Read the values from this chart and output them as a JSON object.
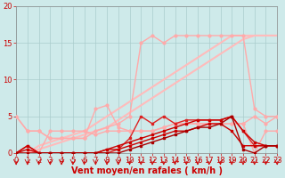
{
  "background_color": "#ceeaea",
  "grid_color": "#aacccc",
  "xlabel": "Vent moyen/en rafales ( km/h )",
  "xlabel_color": "#cc0000",
  "xlabel_fontsize": 7,
  "tick_color": "#cc0000",
  "tick_fontsize": 6,
  "xlim": [
    0,
    23
  ],
  "ylim": [
    0,
    20
  ],
  "yticks": [
    0,
    5,
    10,
    15,
    20
  ],
  "xticks": [
    0,
    1,
    2,
    3,
    4,
    5,
    6,
    7,
    8,
    9,
    10,
    11,
    12,
    13,
    14,
    15,
    16,
    17,
    18,
    19,
    20,
    21,
    22,
    23
  ],
  "series": [
    {
      "x": [
        0,
        1,
        2,
        3,
        4,
        5,
        6,
        7,
        8,
        9,
        10,
        11,
        12,
        13,
        14,
        15,
        16,
        17,
        18,
        19,
        20,
        21,
        22,
        23
      ],
      "y": [
        0,
        0,
        0.5,
        1,
        1.5,
        2,
        2.5,
        3,
        3.5,
        4.5,
        5.5,
        6.5,
        7.5,
        8.5,
        9.5,
        10.5,
        11.5,
        12.5,
        13.5,
        14.5,
        15.5,
        16,
        16,
        16
      ],
      "color": "#ffbbbb",
      "lw": 1.5,
      "marker": null,
      "ms": 0
    },
    {
      "x": [
        0,
        1,
        2,
        3,
        4,
        5,
        6,
        7,
        8,
        9,
        10,
        11,
        12,
        13,
        14,
        15,
        16,
        17,
        18,
        19,
        20,
        21,
        22,
        23
      ],
      "y": [
        0,
        0,
        1,
        1.5,
        2,
        2.5,
        3,
        4,
        5,
        6,
        7,
        8,
        9,
        10,
        11,
        12,
        13,
        14,
        15,
        16,
        16,
        16,
        16,
        16
      ],
      "color": "#ffbbbb",
      "lw": 1.5,
      "marker": null,
      "ms": 0
    },
    {
      "x": [
        0,
        1,
        2,
        3,
        4,
        5,
        6,
        7,
        8,
        9,
        10,
        11,
        12,
        13,
        14,
        15,
        16,
        17,
        18,
        19,
        20,
        21,
        22,
        23
      ],
      "y": [
        5,
        3,
        3,
        2,
        2,
        2,
        2,
        3,
        3.5,
        4,
        5,
        15,
        16,
        15,
        16,
        16,
        16,
        16,
        16,
        16,
        16,
        6,
        5,
        5
      ],
      "color": "#ffaaaa",
      "lw": 1.0,
      "marker": "o",
      "ms": 2
    },
    {
      "x": [
        0,
        1,
        2,
        3,
        4,
        5,
        6,
        7,
        8,
        9,
        10,
        11,
        12,
        13,
        14,
        15,
        16,
        17,
        18,
        19,
        20,
        21,
        22,
        23
      ],
      "y": [
        5,
        3,
        3,
        2,
        2,
        2,
        2,
        6,
        6.5,
        3.5,
        3,
        3,
        3,
        3.5,
        4,
        4,
        4,
        4,
        4,
        4,
        4,
        5,
        4,
        5
      ],
      "color": "#ffaaaa",
      "lw": 1.0,
      "marker": "o",
      "ms": 2
    },
    {
      "x": [
        0,
        1,
        2,
        3,
        4,
        5,
        6,
        7,
        8,
        9,
        10,
        11,
        12,
        13,
        14,
        15,
        16,
        17,
        18,
        19,
        20,
        21,
        22,
        23
      ],
      "y": [
        0,
        0,
        0,
        3,
        3,
        3,
        3,
        2.5,
        3,
        3,
        3,
        3,
        3,
        3.5,
        4,
        4,
        4,
        4,
        4,
        4,
        4,
        0,
        3,
        3
      ],
      "color": "#ffaaaa",
      "lw": 1.0,
      "marker": "o",
      "ms": 2
    },
    {
      "x": [
        0,
        1,
        2,
        3,
        4,
        5,
        6,
        7,
        8,
        9,
        10,
        11,
        12,
        13,
        14,
        15,
        16,
        17,
        18,
        19,
        20,
        21,
        22,
        23
      ],
      "y": [
        0,
        1,
        0,
        0,
        0,
        0,
        0,
        0,
        0,
        0.5,
        2,
        5,
        4,
        5,
        4,
        4.5,
        4.5,
        4.5,
        4.5,
        5,
        3,
        1,
        1,
        1
      ],
      "color": "#dd2222",
      "lw": 1.0,
      "marker": "s",
      "ms": 2
    },
    {
      "x": [
        0,
        1,
        2,
        3,
        4,
        5,
        6,
        7,
        8,
        9,
        10,
        11,
        12,
        13,
        14,
        15,
        16,
        17,
        18,
        19,
        20,
        21,
        22,
        23
      ],
      "y": [
        0,
        1,
        0,
        0,
        0,
        0,
        0,
        0,
        0.5,
        1,
        1.5,
        2,
        2.5,
        3,
        3.5,
        4,
        4.5,
        4.5,
        4.5,
        5,
        3,
        1.5,
        1,
        1
      ],
      "color": "#cc0000",
      "lw": 1.0,
      "marker": "s",
      "ms": 2
    },
    {
      "x": [
        0,
        1,
        2,
        3,
        4,
        5,
        6,
        7,
        8,
        9,
        10,
        11,
        12,
        13,
        14,
        15,
        16,
        17,
        18,
        19,
        20,
        21,
        22,
        23
      ],
      "y": [
        0,
        0.5,
        0,
        0,
        0,
        0,
        0,
        0,
        0.5,
        0.5,
        1,
        1.5,
        2,
        2.5,
        3,
        3,
        3.5,
        4,
        4,
        3,
        1,
        1,
        1,
        1
      ],
      "color": "#cc0000",
      "lw": 1.0,
      "marker": "s",
      "ms": 2
    },
    {
      "x": [
        0,
        1,
        2,
        3,
        4,
        5,
        6,
        7,
        8,
        9,
        10,
        11,
        12,
        13,
        14,
        15,
        16,
        17,
        18,
        19,
        20,
        21,
        22,
        23
      ],
      "y": [
        0,
        0,
        0,
        0,
        0,
        0,
        0,
        0,
        0,
        0,
        0.5,
        1,
        1.5,
        2,
        2.5,
        3,
        3.5,
        3.5,
        4,
        5,
        0.5,
        0,
        1,
        1
      ],
      "color": "#aa0000",
      "lw": 1.0,
      "marker": "s",
      "ms": 2
    }
  ],
  "wind_arrows": {
    "x": [
      0,
      1,
      2,
      3,
      4,
      5,
      6,
      7,
      8,
      9,
      10,
      11,
      12,
      13,
      14,
      15,
      16,
      17,
      18,
      19,
      20,
      21,
      22,
      23
    ],
    "color": "#cc0000"
  }
}
